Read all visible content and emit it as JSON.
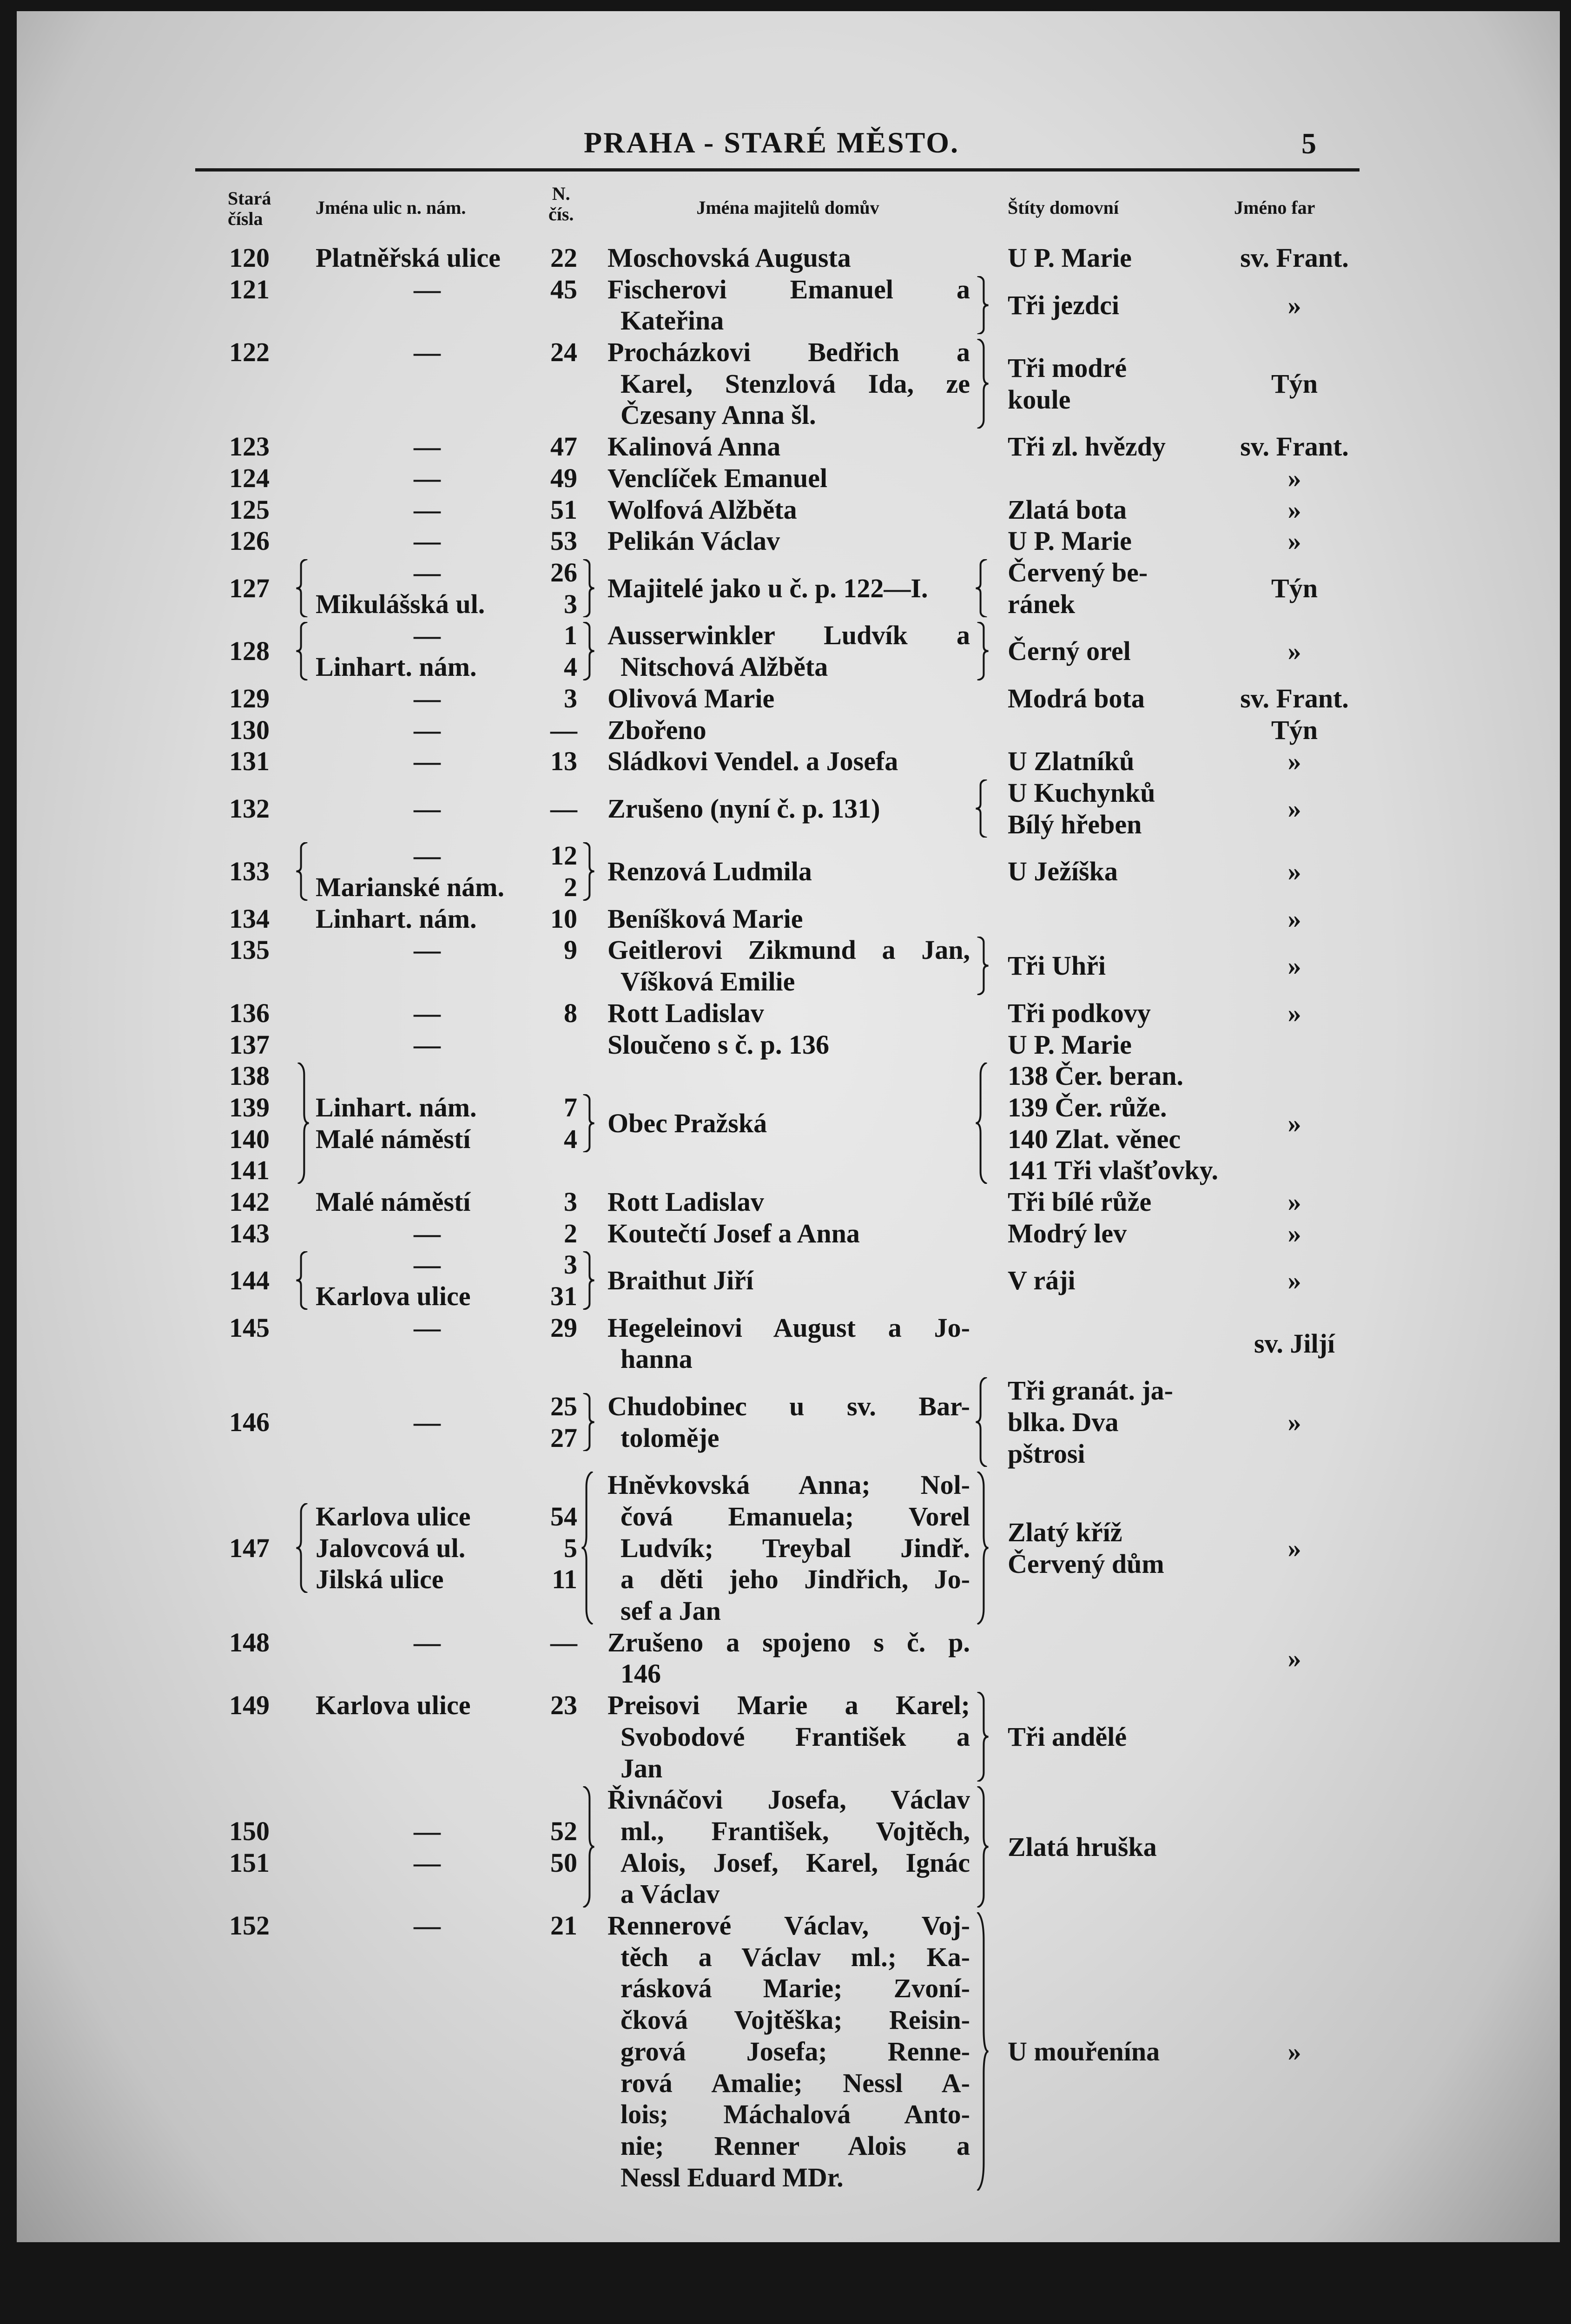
{
  "header": {
    "title": "PRAHA - STARÉ MĚSTO.",
    "page_number": "5"
  },
  "columns": {
    "old": [
      "Stará",
      "čísla"
    ],
    "street": "Jména ulic n. nám.",
    "nc": [
      "N.",
      "čís."
    ],
    "owner": "Jména majitelů domův",
    "sign": "Štíty domovní",
    "parish": "Jméno far"
  },
  "rows": [
    {
      "old": [
        "120"
      ],
      "street": [
        "Platněřská ulice"
      ],
      "nc": [
        "22"
      ],
      "owner": [
        "Moschovská Augusta"
      ],
      "sign": [
        "U P. Marie"
      ],
      "parish": [
        "sv. Frant."
      ]
    },
    {
      "old": [
        "121"
      ],
      "street": [
        "—"
      ],
      "nc": [
        "45"
      ],
      "owner": [
        "Fischerovi Emanuel a",
        "Kateřina"
      ],
      "sign": [
        "Tři jezdci"
      ],
      "parish": [
        "»"
      ],
      "braces": {
        "c": "}"
      }
    },
    {
      "old": [
        "122"
      ],
      "street": [
        "—"
      ],
      "nc": [
        "24"
      ],
      "owner": [
        "Procházkovi Bedřich a",
        "Karel, Stenzlová Ida, ze",
        "Čzesany Anna šl."
      ],
      "sign": [
        "Tři modré",
        "koule"
      ],
      "parish": [
        "Týn"
      ],
      "braces": {
        "c": "}"
      }
    },
    {
      "old": [
        "123"
      ],
      "street": [
        "—"
      ],
      "nc": [
        "47"
      ],
      "owner": [
        "Kalinová Anna"
      ],
      "sign": [
        "Tři zl. hvězdy"
      ],
      "parish": [
        "sv. Frant."
      ]
    },
    {
      "old": [
        "124"
      ],
      "street": [
        "—"
      ],
      "nc": [
        "49"
      ],
      "owner": [
        "Venclíček Emanuel"
      ],
      "sign": [],
      "parish": [
        "»"
      ]
    },
    {
      "old": [
        "125"
      ],
      "street": [
        "—"
      ],
      "nc": [
        "51"
      ],
      "owner": [
        "Wolfová Alžběta"
      ],
      "sign": [
        "Zlatá bota"
      ],
      "parish": [
        "»"
      ]
    },
    {
      "old": [
        "126"
      ],
      "street": [
        "—"
      ],
      "nc": [
        "53"
      ],
      "owner": [
        "Pelikán Václav"
      ],
      "sign": [
        "U P. Marie"
      ],
      "parish": [
        "»"
      ]
    },
    {
      "old": [
        "127"
      ],
      "street": [
        "—",
        "Mikulášská ul."
      ],
      "nc": [
        "26",
        "3"
      ],
      "owner": [
        "Majitelé jako u č. p. 122—I."
      ],
      "sign": [
        "Červený be-",
        "ránek"
      ],
      "parish": [
        "Týn"
      ],
      "braces": {
        "a": "{",
        "b": "}",
        "c": "{"
      }
    },
    {
      "old": [
        "128"
      ],
      "street": [
        "—",
        "Linhart. nám."
      ],
      "nc": [
        "1",
        "4"
      ],
      "owner": [
        "Ausserwinkler Ludvík a",
        "Nitschová Alžběta"
      ],
      "sign": [
        "Černý orel"
      ],
      "parish": [
        "»"
      ],
      "braces": {
        "a": "{",
        "b": "}",
        "c": "}"
      }
    },
    {
      "old": [
        "129"
      ],
      "street": [
        "—"
      ],
      "nc": [
        "3"
      ],
      "owner": [
        "Olivová Marie"
      ],
      "sign": [
        "Modrá bota"
      ],
      "parish": [
        "sv. Frant."
      ]
    },
    {
      "old": [
        "130"
      ],
      "street": [
        "—"
      ],
      "nc": [
        "—"
      ],
      "owner": [
        "Zbořeno"
      ],
      "sign": [],
      "parish": [
        "Týn"
      ]
    },
    {
      "old": [
        "131"
      ],
      "street": [
        "—"
      ],
      "nc": [
        "13"
      ],
      "owner": [
        "Sládkovi Vendel. a Josefa"
      ],
      "sign": [
        "U Zlatníků"
      ],
      "parish": [
        "»"
      ]
    },
    {
      "old": [
        "132"
      ],
      "street": [
        "—"
      ],
      "nc": [
        "—"
      ],
      "owner": [
        "Zrušeno (nyní č. p. 131)"
      ],
      "sign": [
        "U Kuchynků",
        "Bílý hřeben"
      ],
      "parish": [
        "»"
      ],
      "braces": {
        "c": "{"
      }
    },
    {
      "old": [
        "133"
      ],
      "street": [
        "—",
        "Marianské nám."
      ],
      "nc": [
        "12",
        "2"
      ],
      "owner": [
        "Renzová Ludmila"
      ],
      "sign": [
        "U Ježíška"
      ],
      "parish": [
        "»"
      ],
      "braces": {
        "a": "{",
        "b": "}"
      }
    },
    {
      "old": [
        "134"
      ],
      "street": [
        "Linhart. nám."
      ],
      "nc": [
        "10"
      ],
      "owner": [
        "Beníšková Marie"
      ],
      "sign": [],
      "parish": [
        "»"
      ]
    },
    {
      "old": [
        "135"
      ],
      "street": [
        "—"
      ],
      "nc": [
        "9"
      ],
      "owner": [
        "Geitlerovi Zikmund a Jan,",
        "Víšková Emilie"
      ],
      "sign": [
        "Tři Uhři"
      ],
      "parish": [
        "»"
      ],
      "braces": {
        "c": "}"
      }
    },
    {
      "old": [
        "136"
      ],
      "street": [
        "—"
      ],
      "nc": [
        "8"
      ],
      "owner": [
        "Rott Ladislav"
      ],
      "sign": [
        "Tři podkovy"
      ],
      "parish": [
        "»"
      ]
    },
    {
      "old": [
        "137"
      ],
      "street": [
        "—"
      ],
      "nc": [
        ""
      ],
      "owner": [
        "Sloučeno s č. p. 136"
      ],
      "sign": [
        "U P. Marie"
      ],
      "parish": []
    },
    {
      "old": [
        "138",
        "139",
        "140",
        "141"
      ],
      "street": [
        "Linhart. nám.",
        "Malé náměstí"
      ],
      "nc": [
        "7",
        "4"
      ],
      "owner": [
        "Obec Pražská"
      ],
      "sign": [
        "138 Čer. beran.",
        "139 Čer. růže.",
        "140 Zlat. věnec",
        "141 Tři vlašťovky."
      ],
      "parish": [
        "»"
      ],
      "braces": {
        "a": "}",
        "b": "}",
        "c": "{"
      }
    },
    {
      "old": [
        "142"
      ],
      "street": [
        "Malé náměstí"
      ],
      "nc": [
        "3"
      ],
      "owner": [
        "Rott Ladislav"
      ],
      "sign": [
        "Tři bílé růže"
      ],
      "parish": [
        "»"
      ]
    },
    {
      "old": [
        "143"
      ],
      "street": [
        "—"
      ],
      "nc": [
        "2"
      ],
      "owner": [
        "Koutečtí Josef a Anna"
      ],
      "sign": [
        "Modrý lev"
      ],
      "parish": [
        "»"
      ]
    },
    {
      "old": [
        "144"
      ],
      "street": [
        "—",
        "Karlova ulice"
      ],
      "nc": [
        "3",
        "31"
      ],
      "owner": [
        "Braithut Jiří"
      ],
      "sign": [
        "V ráji"
      ],
      "parish": [
        "»"
      ],
      "braces": {
        "a": "{",
        "b": "}"
      }
    },
    {
      "old": [
        "145"
      ],
      "street": [
        "—"
      ],
      "nc": [
        "29"
      ],
      "owner": [
        "Hegeleinovi August a Jo-",
        "hanna"
      ],
      "sign": [],
      "parish": [
        "sv. Jiljí"
      ]
    },
    {
      "old": [
        "146"
      ],
      "street": [
        "—"
      ],
      "nc": [
        "25",
        "27"
      ],
      "owner": [
        "Chudobinec u sv. Bar-",
        "toloměje"
      ],
      "sign": [
        "Tři granát. ja-",
        "blka. Dva",
        "pštrosi"
      ],
      "parish": [
        "»"
      ],
      "braces": {
        "b": "}",
        "c": "{"
      }
    },
    {
      "old": [
        "147"
      ],
      "street": [
        "Karlova ulice",
        "Jalovcová ul.",
        "Jilská ulice"
      ],
      "nc": [
        "54",
        "5",
        "11"
      ],
      "owner": [
        "Hněvkovská Anna; Nol-",
        "čová Emanuela; Vorel",
        "Ludvík; Treybal Jindř.",
        "a děti jeho Jindřich, Jo-",
        "sef a Jan"
      ],
      "sign": [
        "Zlatý kříž",
        "Červený dům"
      ],
      "parish": [
        "»"
      ],
      "braces": {
        "a": "{",
        "b": "{",
        "c": "}"
      }
    },
    {
      "old": [
        "148"
      ],
      "street": [
        "—"
      ],
      "nc": [
        "—"
      ],
      "owner": [
        "Zrušeno a spojeno s č. p.",
        "146"
      ],
      "sign": [],
      "parish": [
        "»"
      ]
    },
    {
      "old": [
        "149"
      ],
      "street": [
        "Karlova ulice"
      ],
      "nc": [
        "23"
      ],
      "owner": [
        "Preisovi Marie a Karel;",
        "Svobodové František a",
        "Jan"
      ],
      "sign": [
        "Tři andělé"
      ],
      "parish": [],
      "braces": {
        "c": "}"
      }
    },
    {
      "old": [
        "150",
        "151"
      ],
      "street": [
        "—",
        "—"
      ],
      "nc": [
        "52",
        "50"
      ],
      "owner": [
        "Řivnáčovi Josefa, Václav",
        "ml., František, Vojtěch,",
        "Alois, Josef, Karel, Ignác",
        "a Václav"
      ],
      "sign": [
        "Zlatá hruška"
      ],
      "parish": [],
      "braces": {
        "b": "}",
        "c": "}"
      }
    },
    {
      "old": [
        "152"
      ],
      "street": [
        "—"
      ],
      "nc": [
        "21"
      ],
      "owner": [
        "Rennerové Václav, Voj-",
        "těch a Václav ml.; Ka-",
        "rásková Marie; Zvoní-",
        "čková Vojtěška; Reisin-",
        "grová Josefa; Renne-",
        "rová Amalie; Nessl A-",
        "lois; Máchalová Anto-",
        "nie; Renner Alois a",
        "Nessl Eduard MDr."
      ],
      "sign": [
        "U mouřenína"
      ],
      "parish": [
        "»"
      ],
      "braces": {
        "c": "}"
      }
    }
  ]
}
